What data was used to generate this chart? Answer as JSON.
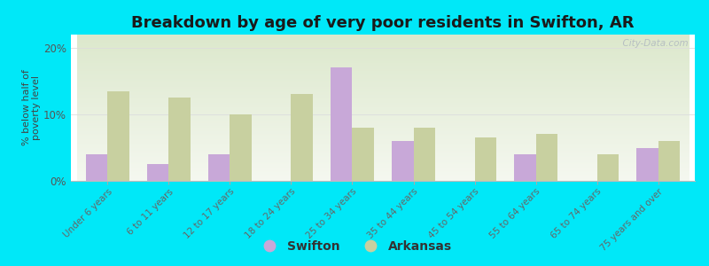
{
  "categories": [
    "Under 6 years",
    "6 to 11 years",
    "12 to 17 years",
    "18 to 24 years",
    "25 to 34 years",
    "35 to 44 years",
    "45 to 54 years",
    "55 to 64 years",
    "65 to 74 years",
    "75 years and over"
  ],
  "swifton_values": [
    4.0,
    2.5,
    4.0,
    0.0,
    17.0,
    6.0,
    0.0,
    4.0,
    0.0,
    5.0
  ],
  "arkansas_values": [
    13.5,
    12.5,
    10.0,
    13.0,
    8.0,
    8.0,
    6.5,
    7.0,
    4.0,
    6.0
  ],
  "swifton_color": "#c8a8d8",
  "arkansas_color": "#c8d0a0",
  "background_outer": "#00e8f8",
  "title": "Breakdown by age of very poor residents in Swifton, AR",
  "ylabel": "% below half of\npoverty level",
  "ylim": [
    0,
    22
  ],
  "yticks": [
    0,
    10,
    20
  ],
  "ytick_labels": [
    "0%",
    "10%",
    "20%"
  ],
  "title_fontsize": 13,
  "bar_width": 0.35,
  "legend_swifton": "Swifton",
  "legend_arkansas": "Arkansas",
  "watermark": "  City-Data.com"
}
